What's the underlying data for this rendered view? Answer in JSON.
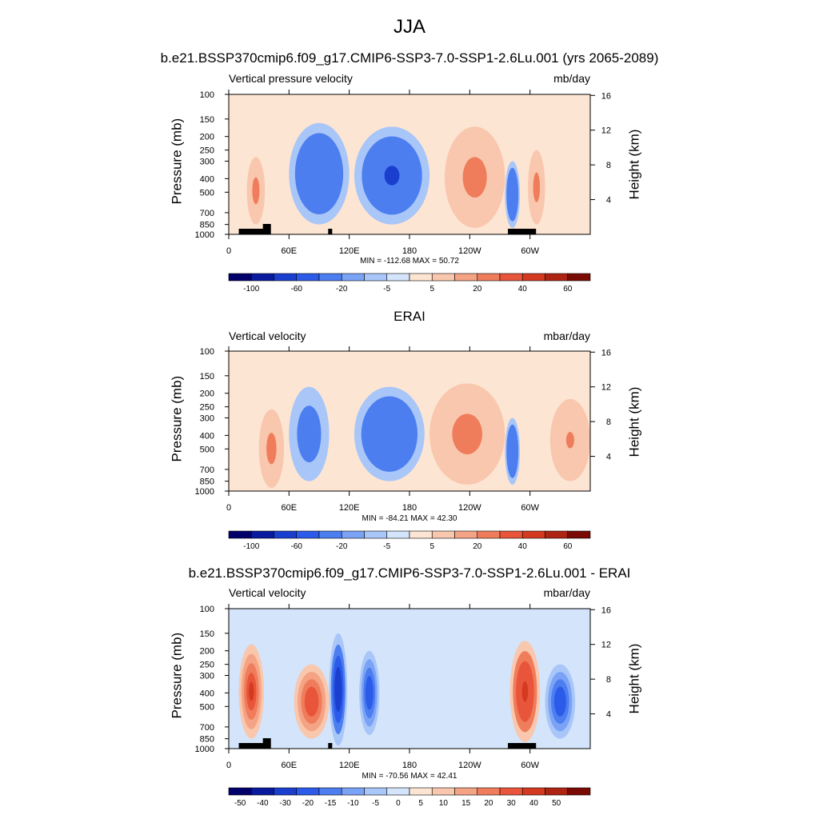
{
  "main_title": "JJA",
  "panels": [
    {
      "title": "b.e21.BSSP370cmip6.f09_g17.CMIP6-SSP3-7.0-SSP1-2.6Lu.001 (yrs 2065-2089)",
      "left_header": "Vertical pressure velocity",
      "right_header": "mb/day",
      "y_label": "Pressure (mb)",
      "y2_label": "Height (km)",
      "stats": "MIN = -112.68  MAX =  50.72",
      "colorbar_labels": [
        "-100",
        "-60",
        "-20",
        "-5",
        "5",
        "20",
        "40",
        "60"
      ]
    },
    {
      "title": "ERAI",
      "left_header": "Vertical velocity",
      "right_header": "mbar/day",
      "y_label": "Pressure (mb)",
      "y2_label": "Height (km)",
      "stats": "MIN = -84.21  MAX =  42.30",
      "colorbar_labels": [
        "-100",
        "-60",
        "-20",
        "-5",
        "5",
        "20",
        "40",
        "60"
      ]
    },
    {
      "title": "b.e21.BSSP370cmip6.f09_g17.CMIP6-SSP3-7.0-SSP1-2.6Lu.001 - ERAI",
      "left_header": "Vertical velocity",
      "right_header": "mbar/day",
      "y_label": "Pressure (mb)",
      "y2_label": "Height (km)",
      "stats": "MIN = -70.56  MAX =  42.41",
      "colorbar_labels": [
        "-50",
        "-40",
        "-30",
        "-20",
        "-15",
        "-10",
        "-5",
        "0",
        "5",
        "10",
        "15",
        "20",
        "30",
        "40",
        "50"
      ]
    }
  ],
  "chart_data": [
    {
      "type": "heatmap",
      "title": "b.e21.BSSP370cmip6.f09_g17.CMIP6-SSP3-7.0-SSP1-2.6Lu.001 (yrs 2065-2089)",
      "variable": "Vertical pressure velocity",
      "units": "mb/day",
      "x_ticks": [
        "0",
        "60E",
        "120E",
        "180",
        "120W",
        "60W"
      ],
      "x_tick_lon": [
        0,
        60,
        120,
        180,
        240,
        300
      ],
      "xlim": [
        0,
        360
      ],
      "y_ticks": [
        100,
        150,
        200,
        250,
        300,
        400,
        500,
        700,
        850,
        1000
      ],
      "ylim": [
        1000,
        100
      ],
      "y_scale": "log",
      "y2_ticks": [
        4,
        8,
        12,
        16
      ],
      "y2_label": "Height (km)",
      "levels": [
        -100,
        -60,
        -20,
        -5,
        5,
        20,
        40,
        60
      ],
      "colors": [
        "#02006b",
        "#0a1a9e",
        "#1a3fcf",
        "#2b5be8",
        "#4c7ef0",
        "#7ba3f5",
        "#a9c6f8",
        "#d3e4fb",
        "#fde5d3",
        "#f9c7ad",
        "#f5a385",
        "#ef7d5c",
        "#e8553a",
        "#d33a20",
        "#ae2412",
        "#7a0b04"
      ],
      "min": -112.68,
      "max": 50.72,
      "topography_bars": [
        [
          10,
          40
        ],
        [
          34,
          42
        ],
        [
          99,
          103
        ],
        [
          278,
          306
        ]
      ],
      "features": [
        {
          "lon": [
            18,
            36
          ],
          "p": [
            280,
            850
          ],
          "value": 30
        },
        {
          "lon": [
            60,
            120
          ],
          "p": [
            160,
            850
          ],
          "value": -50
        },
        {
          "lon": [
            125,
            200
          ],
          "p": [
            170,
            850
          ],
          "value": -70
        },
        {
          "lon": [
            215,
            275
          ],
          "p": [
            170,
            900
          ],
          "value": 25
        },
        {
          "lon": [
            275,
            290
          ],
          "p": [
            300,
            900
          ],
          "value": -60
        },
        {
          "lon": [
            298,
            315
          ],
          "p": [
            250,
            850
          ],
          "value": 25
        }
      ]
    },
    {
      "type": "heatmap",
      "title": "ERAI",
      "variable": "Vertical velocity",
      "units": "mbar/day",
      "x_ticks": [
        "0",
        "60E",
        "120E",
        "180",
        "120W",
        "60W"
      ],
      "x_tick_lon": [
        0,
        60,
        120,
        180,
        240,
        300
      ],
      "xlim": [
        0,
        360
      ],
      "y_ticks": [
        100,
        150,
        200,
        250,
        300,
        400,
        500,
        700,
        850,
        1000
      ],
      "ylim": [
        1000,
        100
      ],
      "y_scale": "log",
      "y2_ticks": [
        4,
        8,
        12,
        16
      ],
      "y2_label": "Height (km)",
      "levels": [
        -100,
        -60,
        -20,
        -5,
        5,
        20,
        40,
        60
      ],
      "colors": [
        "#02006b",
        "#0a1a9e",
        "#1a3fcf",
        "#2b5be8",
        "#4c7ef0",
        "#7ba3f5",
        "#a9c6f8",
        "#d3e4fb",
        "#fde5d3",
        "#f9c7ad",
        "#f5a385",
        "#ef7d5c",
        "#e8553a",
        "#d33a20",
        "#ae2412",
        "#7a0b04"
      ],
      "min": -84.21,
      "max": 42.3,
      "features": [
        {
          "lon": [
            30,
            55
          ],
          "p": [
            260,
            950
          ],
          "value": 30
        },
        {
          "lon": [
            60,
            100
          ],
          "p": [
            180,
            850
          ],
          "value": -40
        },
        {
          "lon": [
            125,
            195
          ],
          "p": [
            180,
            850
          ],
          "value": -50
        },
        {
          "lon": [
            200,
            275
          ],
          "p": [
            170,
            900
          ],
          "value": 25
        },
        {
          "lon": [
            275,
            290
          ],
          "p": [
            300,
            900
          ],
          "value": -50
        },
        {
          "lon": [
            320,
            360
          ],
          "p": [
            220,
            850
          ],
          "value": 20
        }
      ]
    },
    {
      "type": "heatmap",
      "title": "b.e21.BSSP370cmip6.f09_g17.CMIP6-SSP3-7.0-SSP1-2.6Lu.001 - ERAI",
      "variable": "Vertical velocity",
      "units": "mbar/day",
      "x_ticks": [
        "0",
        "60E",
        "120E",
        "180",
        "120W",
        "60W"
      ],
      "x_tick_lon": [
        0,
        60,
        120,
        180,
        240,
        300
      ],
      "xlim": [
        0,
        360
      ],
      "y_ticks": [
        100,
        150,
        200,
        250,
        300,
        400,
        500,
        700,
        850,
        1000
      ],
      "ylim": [
        1000,
        100
      ],
      "y_scale": "log",
      "y2_ticks": [
        4,
        8,
        12,
        16
      ],
      "y2_label": "Height (km)",
      "levels": [
        -50,
        -40,
        -30,
        -20,
        -15,
        -10,
        -5,
        0,
        5,
        10,
        15,
        20,
        30,
        40,
        50
      ],
      "colors": [
        "#02006b",
        "#0a1a9e",
        "#1a3fcf",
        "#2b5be8",
        "#4c7ef0",
        "#7ba3f5",
        "#a9c6f8",
        "#d3e4fb",
        "#fde5d3",
        "#f9c7ad",
        "#f5a385",
        "#ef7d5c",
        "#e8553a",
        "#d33a20",
        "#ae2412",
        "#7a0b04"
      ],
      "min": -70.56,
      "max": 42.41,
      "topography_bars": [
        [
          10,
          40
        ],
        [
          34,
          42
        ],
        [
          99,
          103
        ],
        [
          278,
          306
        ]
      ],
      "features": [
        {
          "lon": [
            10,
            35
          ],
          "p": [
            180,
            850
          ],
          "value": 30
        },
        {
          "lon": [
            65,
            100
          ],
          "p": [
            250,
            850
          ],
          "value": 25
        },
        {
          "lon": [
            100,
            118
          ],
          "p": [
            150,
            950
          ],
          "value": -40
        },
        {
          "lon": [
            130,
            150
          ],
          "p": [
            200,
            800
          ],
          "value": -25
        },
        {
          "lon": [
            280,
            310
          ],
          "p": [
            170,
            900
          ],
          "value": 35
        },
        {
          "lon": [
            315,
            345
          ],
          "p": [
            250,
            850
          ],
          "value": -30
        }
      ]
    }
  ]
}
